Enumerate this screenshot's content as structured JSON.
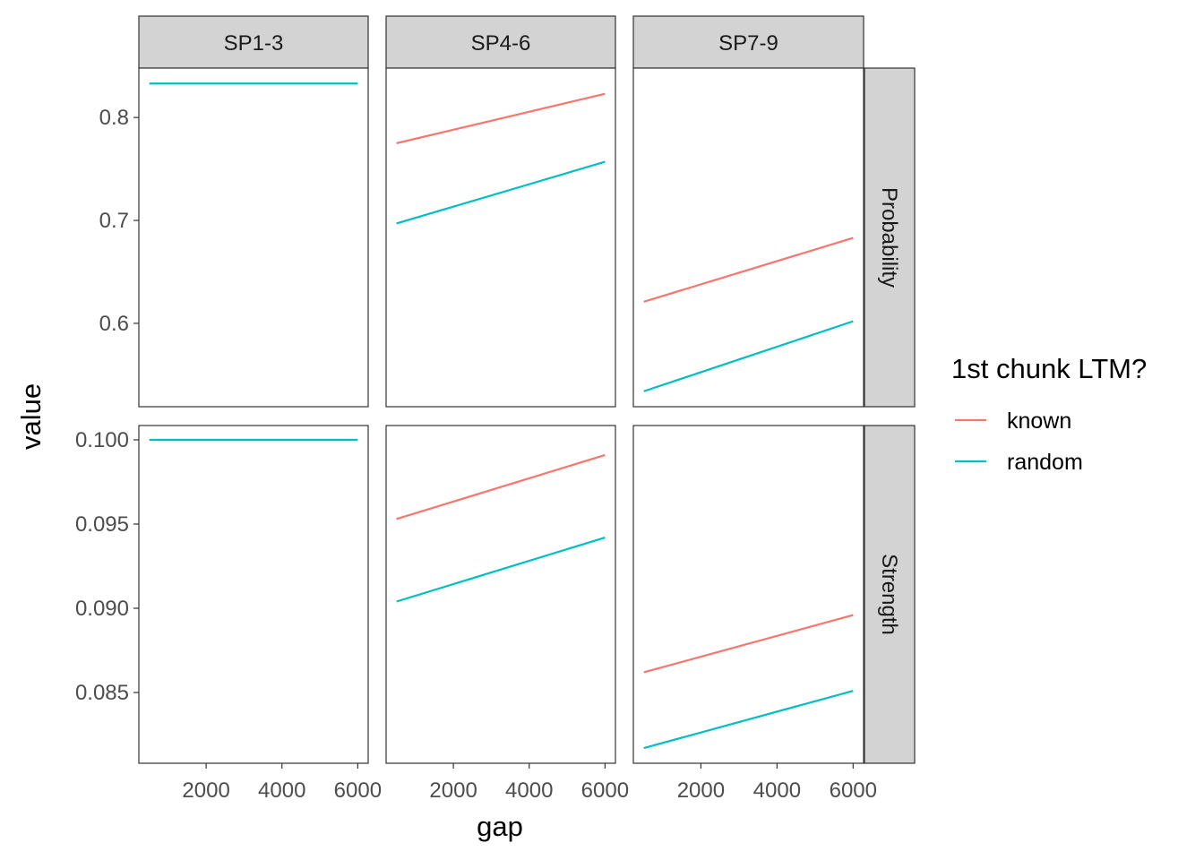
{
  "chart_data": {
    "type": "line",
    "xlabel": "gap",
    "ylabel": "value",
    "xlim": [
      225,
      6275
    ],
    "x_ticks": [
      2000,
      4000,
      6000
    ],
    "x_tick_labels": [
      "2000",
      "4000",
      "6000"
    ],
    "facet_columns": [
      "SP1-3",
      "SP4-6",
      "SP7-9"
    ],
    "facet_rows": [
      {
        "label": "Probability",
        "ylim": [
          0.519,
          0.848
        ],
        "y_ticks": [
          0.6,
          0.7,
          0.8
        ],
        "y_tick_labels": [
          "0.6",
          "0.7",
          "0.8"
        ]
      },
      {
        "label": "Strength",
        "ylim": [
          0.0808,
          0.10085
        ],
        "y_ticks": [
          0.085,
          0.09,
          0.095,
          0.1
        ],
        "y_tick_labels": [
          "0.085",
          "0.090",
          "0.095",
          "0.100"
        ]
      }
    ],
    "legend": {
      "title": "1st chunk LTM?",
      "position": "right",
      "entries": [
        {
          "name": "known",
          "color": "#F8766D"
        },
        {
          "name": "random",
          "color": "#00BFC4"
        }
      ]
    },
    "panels": [
      {
        "row": 0,
        "col": 0,
        "series": [
          {
            "name": "random",
            "x": [
              500,
              6000
            ],
            "y": [
              0.833,
              0.833
            ]
          }
        ]
      },
      {
        "row": 0,
        "col": 1,
        "series": [
          {
            "name": "known",
            "x": [
              500,
              6000
            ],
            "y": [
              0.775,
              0.823
            ]
          },
          {
            "name": "random",
            "x": [
              500,
              6000
            ],
            "y": [
              0.697,
              0.757
            ]
          }
        ]
      },
      {
        "row": 0,
        "col": 2,
        "series": [
          {
            "name": "known",
            "x": [
              500,
              6000
            ],
            "y": [
              0.621,
              0.683
            ]
          },
          {
            "name": "random",
            "x": [
              500,
              6000
            ],
            "y": [
              0.534,
              0.602
            ]
          }
        ]
      },
      {
        "row": 1,
        "col": 0,
        "series": [
          {
            "name": "random",
            "x": [
              500,
              6000
            ],
            "y": [
              0.1,
              0.1
            ]
          }
        ]
      },
      {
        "row": 1,
        "col": 1,
        "series": [
          {
            "name": "known",
            "x": [
              500,
              6000
            ],
            "y": [
              0.0953,
              0.0991
            ]
          },
          {
            "name": "random",
            "x": [
              500,
              6000
            ],
            "y": [
              0.0904,
              0.0942
            ]
          }
        ]
      },
      {
        "row": 1,
        "col": 2,
        "series": [
          {
            "name": "known",
            "x": [
              500,
              6000
            ],
            "y": [
              0.0862,
              0.0896
            ]
          },
          {
            "name": "random",
            "x": [
              500,
              6000
            ],
            "y": [
              0.0817,
              0.0851
            ]
          }
        ]
      }
    ]
  }
}
